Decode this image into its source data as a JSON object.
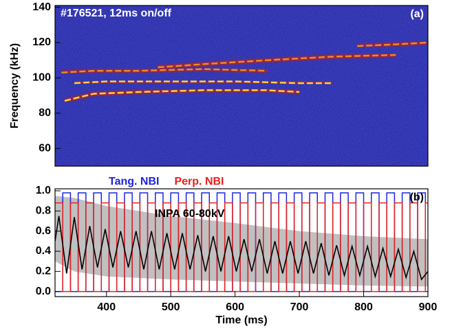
{
  "chart_data": [
    {
      "type": "spectrogram",
      "title": "#176521, 12ms on/off",
      "panel_label": "(a)",
      "ylabel": "Frequency (kHz)",
      "background": "#2b2fa8",
      "xlim": [
        320,
        900
      ],
      "ylim": [
        50,
        141
      ],
      "yticks": [
        60,
        80,
        100,
        120,
        140
      ],
      "series": [
        {
          "color": "#ffd23c",
          "x": [
            335,
            380,
            450,
            550,
            650,
            700
          ],
          "values": [
            87,
            91,
            92,
            93,
            93,
            92
          ]
        },
        {
          "color": "#ffd23c",
          "x": [
            350,
            400,
            500,
            600,
            700,
            750
          ],
          "values": [
            97,
            98,
            98,
            98,
            97,
            97
          ]
        },
        {
          "color": "#f08a20",
          "x": [
            330,
            380,
            450,
            550,
            650
          ],
          "values": [
            103,
            104,
            104,
            105,
            104
          ]
        },
        {
          "color": "#f08a20",
          "x": [
            480,
            560,
            650,
            750,
            850
          ],
          "values": [
            106,
            108,
            110,
            112,
            113
          ]
        },
        {
          "color": "#f08a20",
          "x": [
            790,
            850,
            900
          ],
          "values": [
            118,
            119,
            120
          ]
        }
      ]
    },
    {
      "type": "line",
      "panel_label": "(b)",
      "xlabel": "Time (ms)",
      "annotation": "INPA 60-80kV",
      "xlim": [
        320,
        900
      ],
      "xticks": [
        400,
        500,
        600,
        700,
        800,
        900
      ],
      "ylim": [
        -0.05,
        1.02
      ],
      "yticks": [
        {
          "value": 0,
          "label": "0.0"
        },
        0.2,
        0.4,
        0.6,
        0.8,
        {
          "value": 1,
          "label": "1.0"
        }
      ],
      "series": [
        {
          "color": "#c0c0c0",
          "x": [
            320,
            350,
            400,
            500,
            600,
            700,
            800,
            900
          ],
          "values": [
            0.95,
            0.93,
            0.85,
            0.75,
            0.68,
            0.6,
            0.55,
            0.52
          ],
          "lower": [
            0.3,
            0.2,
            0.15,
            0.12,
            0.1,
            0.08,
            0.06,
            0.05
          ]
        },
        {
          "name": "Tang. NBI",
          "color": "#1f22e0",
          "step": true,
          "x": [
            320,
            332,
            344,
            356,
            368,
            380,
            392,
            404,
            416,
            428,
            440,
            452,
            464,
            476,
            488,
            500,
            512,
            524,
            536,
            548,
            560,
            572,
            584,
            596,
            608,
            620,
            632,
            644,
            656,
            668,
            680,
            692,
            704,
            716,
            728,
            740,
            752,
            764,
            776,
            788,
            800,
            812,
            824,
            836,
            848,
            860,
            872,
            884,
            896
          ],
          "values": [
            0,
            0.98,
            0,
            0.98,
            0,
            0.98,
            0,
            0.98,
            0,
            0.98,
            0,
            0.98,
            0,
            0.98,
            0,
            0.98,
            0,
            0.98,
            0,
            0.98,
            0,
            0.98,
            0,
            0.98,
            0,
            0.98,
            0,
            0.98,
            0,
            0.98,
            0,
            0.98,
            0,
            0.98,
            0,
            0.98,
            0,
            0.98,
            0,
            0.98,
            0,
            0.98,
            0,
            0.98,
            0,
            0.98,
            0,
            0.98,
            0
          ]
        },
        {
          "name": "Perp. NBI",
          "color": "#e8201c",
          "step": true,
          "x": [
            320,
            332,
            344,
            356,
            368,
            380,
            392,
            404,
            416,
            428,
            440,
            452,
            464,
            476,
            488,
            500,
            512,
            524,
            536,
            548,
            560,
            572,
            584,
            596,
            608,
            620,
            632,
            644,
            656,
            668,
            680,
            692,
            704,
            716,
            728,
            740,
            752,
            764,
            776,
            788,
            800,
            812,
            824,
            836,
            848,
            860,
            872,
            884,
            896
          ],
          "values": [
            0.88,
            0,
            0.88,
            0,
            0.88,
            0,
            0.88,
            0,
            0.88,
            0,
            0.88,
            0,
            0.88,
            0,
            0.88,
            0,
            0.88,
            0,
            0.88,
            0,
            0.88,
            0,
            0.88,
            0,
            0.88,
            0,
            0.88,
            0,
            0.88,
            0,
            0.88,
            0,
            0.88,
            0,
            0.88,
            0,
            0.88,
            0,
            0.88,
            0,
            0.88,
            0,
            0.88,
            0,
            0.88,
            0,
            0.88,
            0,
            0.88
          ]
        },
        {
          "color": "#000000",
          "x": [
            320,
            326,
            338,
            350,
            362,
            374,
            386,
            398,
            410,
            422,
            434,
            446,
            458,
            470,
            482,
            494,
            506,
            518,
            530,
            542,
            554,
            566,
            578,
            590,
            602,
            614,
            626,
            638,
            650,
            662,
            674,
            686,
            698,
            710,
            722,
            734,
            746,
            758,
            770,
            782,
            794,
            806,
            818,
            830,
            842,
            854,
            866,
            878,
            890,
            900
          ],
          "values": [
            0.5,
            0.75,
            0.18,
            0.74,
            0.22,
            0.65,
            0.24,
            0.62,
            0.24,
            0.6,
            0.24,
            0.6,
            0.22,
            0.6,
            0.22,
            0.58,
            0.22,
            0.58,
            0.22,
            0.56,
            0.2,
            0.55,
            0.2,
            0.55,
            0.2,
            0.52,
            0.2,
            0.52,
            0.18,
            0.5,
            0.18,
            0.5,
            0.18,
            0.5,
            0.18,
            0.48,
            0.16,
            0.46,
            0.16,
            0.45,
            0.16,
            0.45,
            0.15,
            0.43,
            0.15,
            0.42,
            0.14,
            0.4,
            0.12,
            0.2
          ]
        }
      ]
    }
  ]
}
